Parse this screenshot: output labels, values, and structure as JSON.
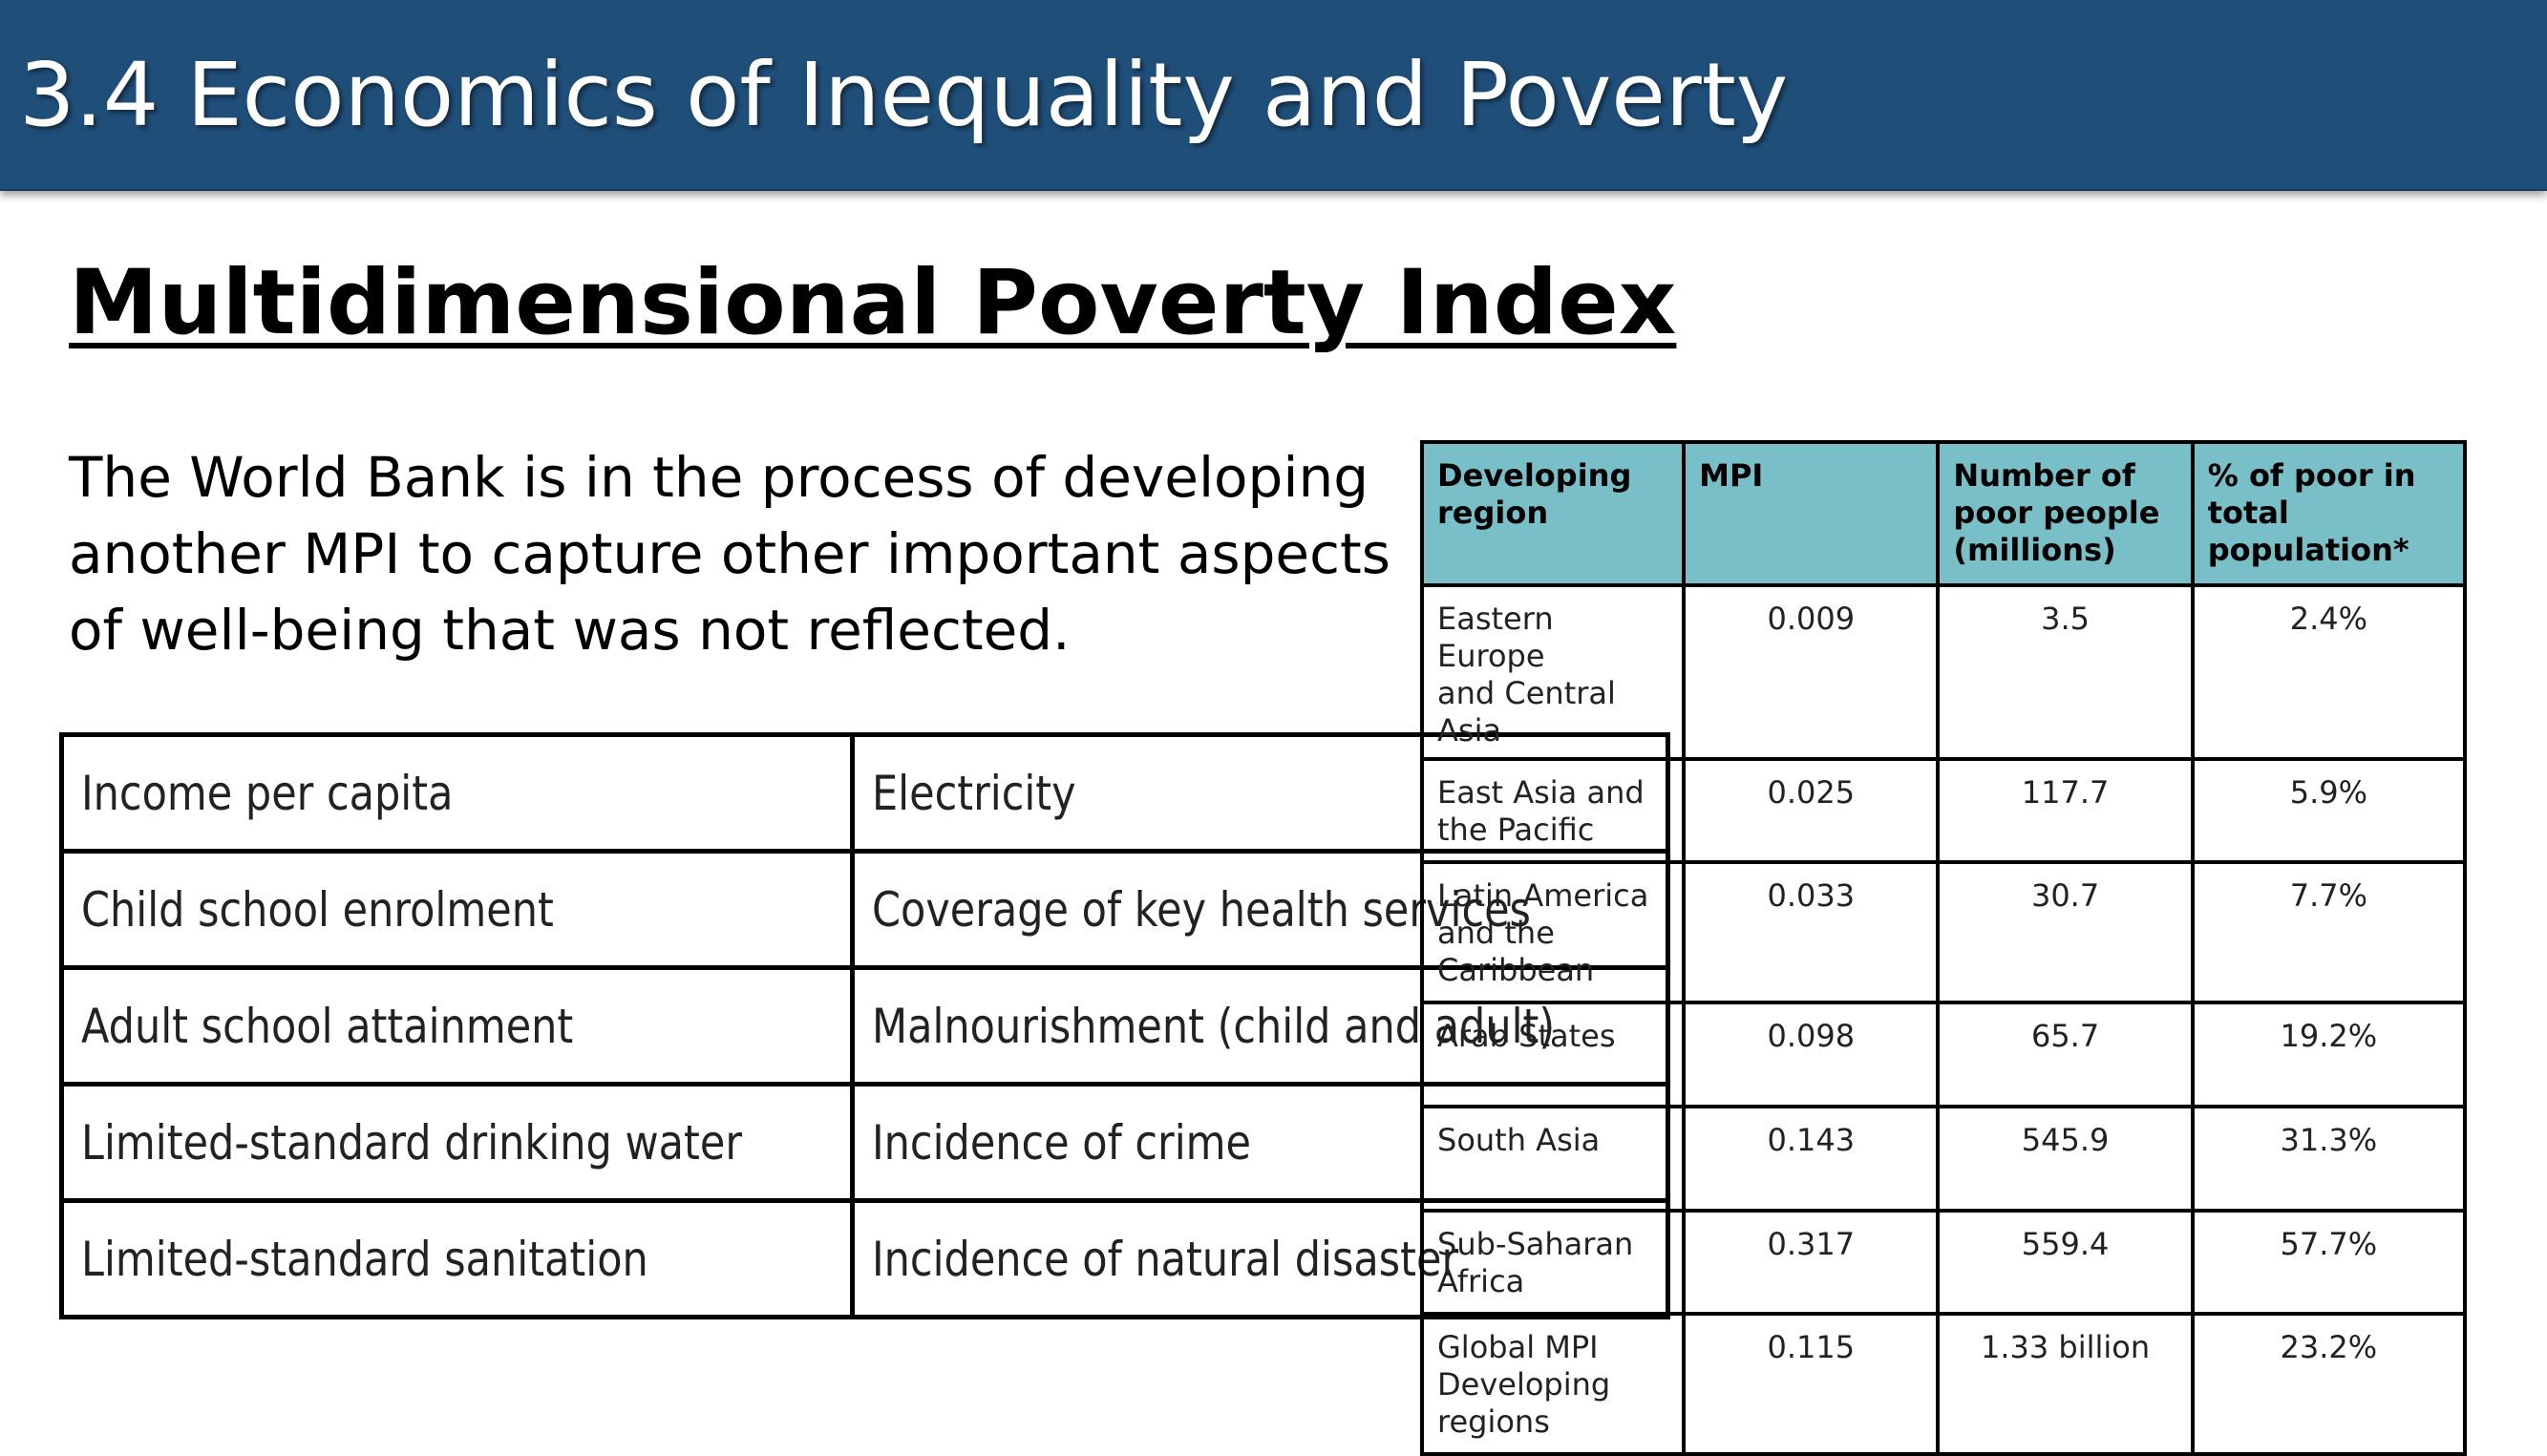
{
  "header": {
    "title": "3.4 Economics of Inequality and Poverty"
  },
  "slide": {
    "title": "Multidimensional Poverty Index",
    "body_lines": [
      "The World Bank is in the process of developing",
      "another MPI to capture other important aspects",
      "of well-being that was not reflected."
    ]
  },
  "aspects_table": {
    "rows": [
      [
        "Income per capita",
        "Electricity"
      ],
      [
        "Child school enrolment",
        "Coverage of key health services"
      ],
      [
        "Adult school attainment",
        "Malnourishment (child and adult)"
      ],
      [
        "Limited-standard drinking water",
        "Incidence of crime"
      ],
      [
        "Limited-standard sanitation",
        "Incidence of natural disaster"
      ]
    ]
  },
  "mpi_table": {
    "headers": [
      [
        "Developing",
        "region"
      ],
      [
        "MPI"
      ],
      [
        "Number of",
        "poor people",
        "(millions)"
      ],
      [
        "% of poor in",
        "total",
        "population*"
      ]
    ],
    "rows": [
      {
        "region": [
          "Eastern Europe",
          "and Central Asia"
        ],
        "mpi": "0.009",
        "poor": "3.5",
        "pct": "2.4%"
      },
      {
        "region": [
          "East Asia and",
          "the Pacific"
        ],
        "mpi": "0.025",
        "poor": "117.7",
        "pct": "5.9%"
      },
      {
        "region": [
          "Latin America",
          "and the",
          "Caribbean"
        ],
        "mpi": "0.033",
        "poor": "30.7",
        "pct": "7.7%"
      },
      {
        "region": [
          "Arab States"
        ],
        "mpi": "0.098",
        "poor": "65.7",
        "pct": "19.2%"
      },
      {
        "region": [
          "South Asia"
        ],
        "mpi": "0.143",
        "poor": "545.9",
        "pct": "31.3%"
      },
      {
        "region": [
          "Sub-Saharan",
          "Africa"
        ],
        "mpi": "0.317",
        "poor": "559.4",
        "pct": "57.7%"
      },
      {
        "region": [
          "Global MPI",
          "Developing",
          "regions"
        ],
        "mpi": "0.115",
        "poor": "1.33 billion",
        "pct": "23.2%"
      }
    ]
  }
}
